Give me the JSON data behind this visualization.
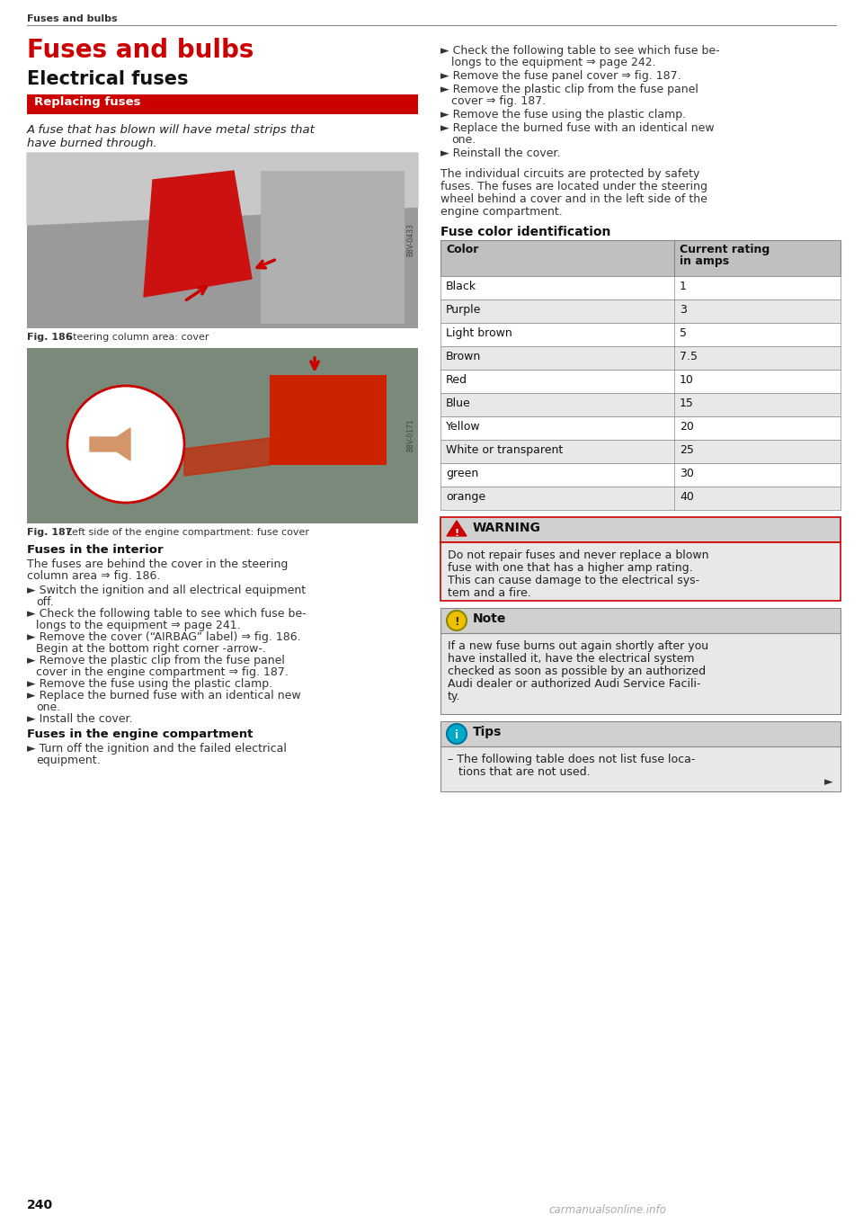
{
  "page_bg": "#ffffff",
  "header_text": "Fuses and bulbs",
  "title_main": "Fuses and bulbs",
  "title_main_color": "#cc0000",
  "subtitle": "Electrical fuses",
  "section_bar_text": "Replacing fuses",
  "section_bar_bg": "#cc0000",
  "section_bar_text_color": "#ffffff",
  "italic_line1": "A fuse that has blown will have metal strips that",
  "italic_line2": "have burned through.",
  "fig186_caption_bold": "Fig. 186",
  "fig186_caption_rest": "  Steering column area: cover",
  "fig187_caption_bold": "Fig. 187",
  "fig187_caption_rest": "  Left side of the engine compartment: fuse cover",
  "interior_header": "Fuses in the interior",
  "interior_para_line1": "The fuses are behind the cover in the steering",
  "interior_para_line2": "column area ⇒ fig. 186.",
  "interior_bullets": [
    "Switch the ignition and all electrical equipment\noff.",
    "Check the following table to see which fuse be-\nlongs to the equipment ⇒ page 241.",
    "Remove the cover (“AIRBAG” label) ⇒ fig. 186.\nBegin at the bottom right corner -arrow-.",
    "Remove the plastic clip from the fuse panel\ncover in the engine compartment ⇒ fig. 187.",
    "Remove the fuse using the plastic clamp.",
    "Replace the burned fuse with an identical new\none.",
    "Install the cover."
  ],
  "engine_header": "Fuses in the engine compartment",
  "engine_bullets": [
    "Turn off the ignition and the failed electrical\nequipment."
  ],
  "right_bullets": [
    "Check the following table to see which fuse be-\nlongs to the equipment ⇒ page 242.",
    "Remove the fuse panel cover ⇒ fig. 187.",
    "Remove the plastic clip from the fuse panel\ncover ⇒ fig. 187.",
    "Remove the fuse using the plastic clamp.",
    "Replace the burned fuse with an identical new\none.",
    "Reinstall the cover."
  ],
  "right_para": [
    "The individual circuits are protected by safety",
    "fuses. The fuses are located under the steering",
    "wheel behind a cover and in the left side of the",
    "engine compartment."
  ],
  "fuse_color_header": "Fuse color identification",
  "table_header_bg": "#c0c0c0",
  "table_row_bg": "#e8e8e8",
  "table_col1_header": "Color",
  "table_col2_header": "Current rating\nin amps",
  "table_rows": [
    [
      "Black",
      "1"
    ],
    [
      "Purple",
      "3"
    ],
    [
      "Light brown",
      "5"
    ],
    [
      "Brown",
      "7.5"
    ],
    [
      "Red",
      "10"
    ],
    [
      "Blue",
      "15"
    ],
    [
      "Yellow",
      "20"
    ],
    [
      "White or transparent",
      "25"
    ],
    [
      "green",
      "30"
    ],
    [
      "orange",
      "40"
    ]
  ],
  "warning_title": "WARNING",
  "warning_header_bg": "#d0d0d0",
  "warning_body_bg": "#e8e8e8",
  "warning_border": "#cc0000",
  "warning_lines": [
    "Do not repair fuses and never replace a blown",
    "fuse with one that has a higher amp rating.",
    "This can cause damage to the electrical sys-",
    "tem and a fire."
  ],
  "note_title": "Note",
  "note_header_bg": "#d0d0d0",
  "note_body_bg": "#e8e8e8",
  "note_border": "#e0c000",
  "note_lines": [
    "If a new fuse burns out again shortly after you",
    "have installed it, have the electrical system",
    "checked as soon as possible by an authorized",
    "Audi dealer or authorized Audi Service Facili-",
    "ty."
  ],
  "tips_title": "Tips",
  "tips_header_bg": "#d0d0d0",
  "tips_body_bg": "#e8e8e8",
  "tips_border": "#00aacc",
  "tips_lines": [
    "– The following table does not list fuse loca-",
    "   tions that are not used."
  ],
  "page_number": "240",
  "watermark": "carmanualsonline.info"
}
